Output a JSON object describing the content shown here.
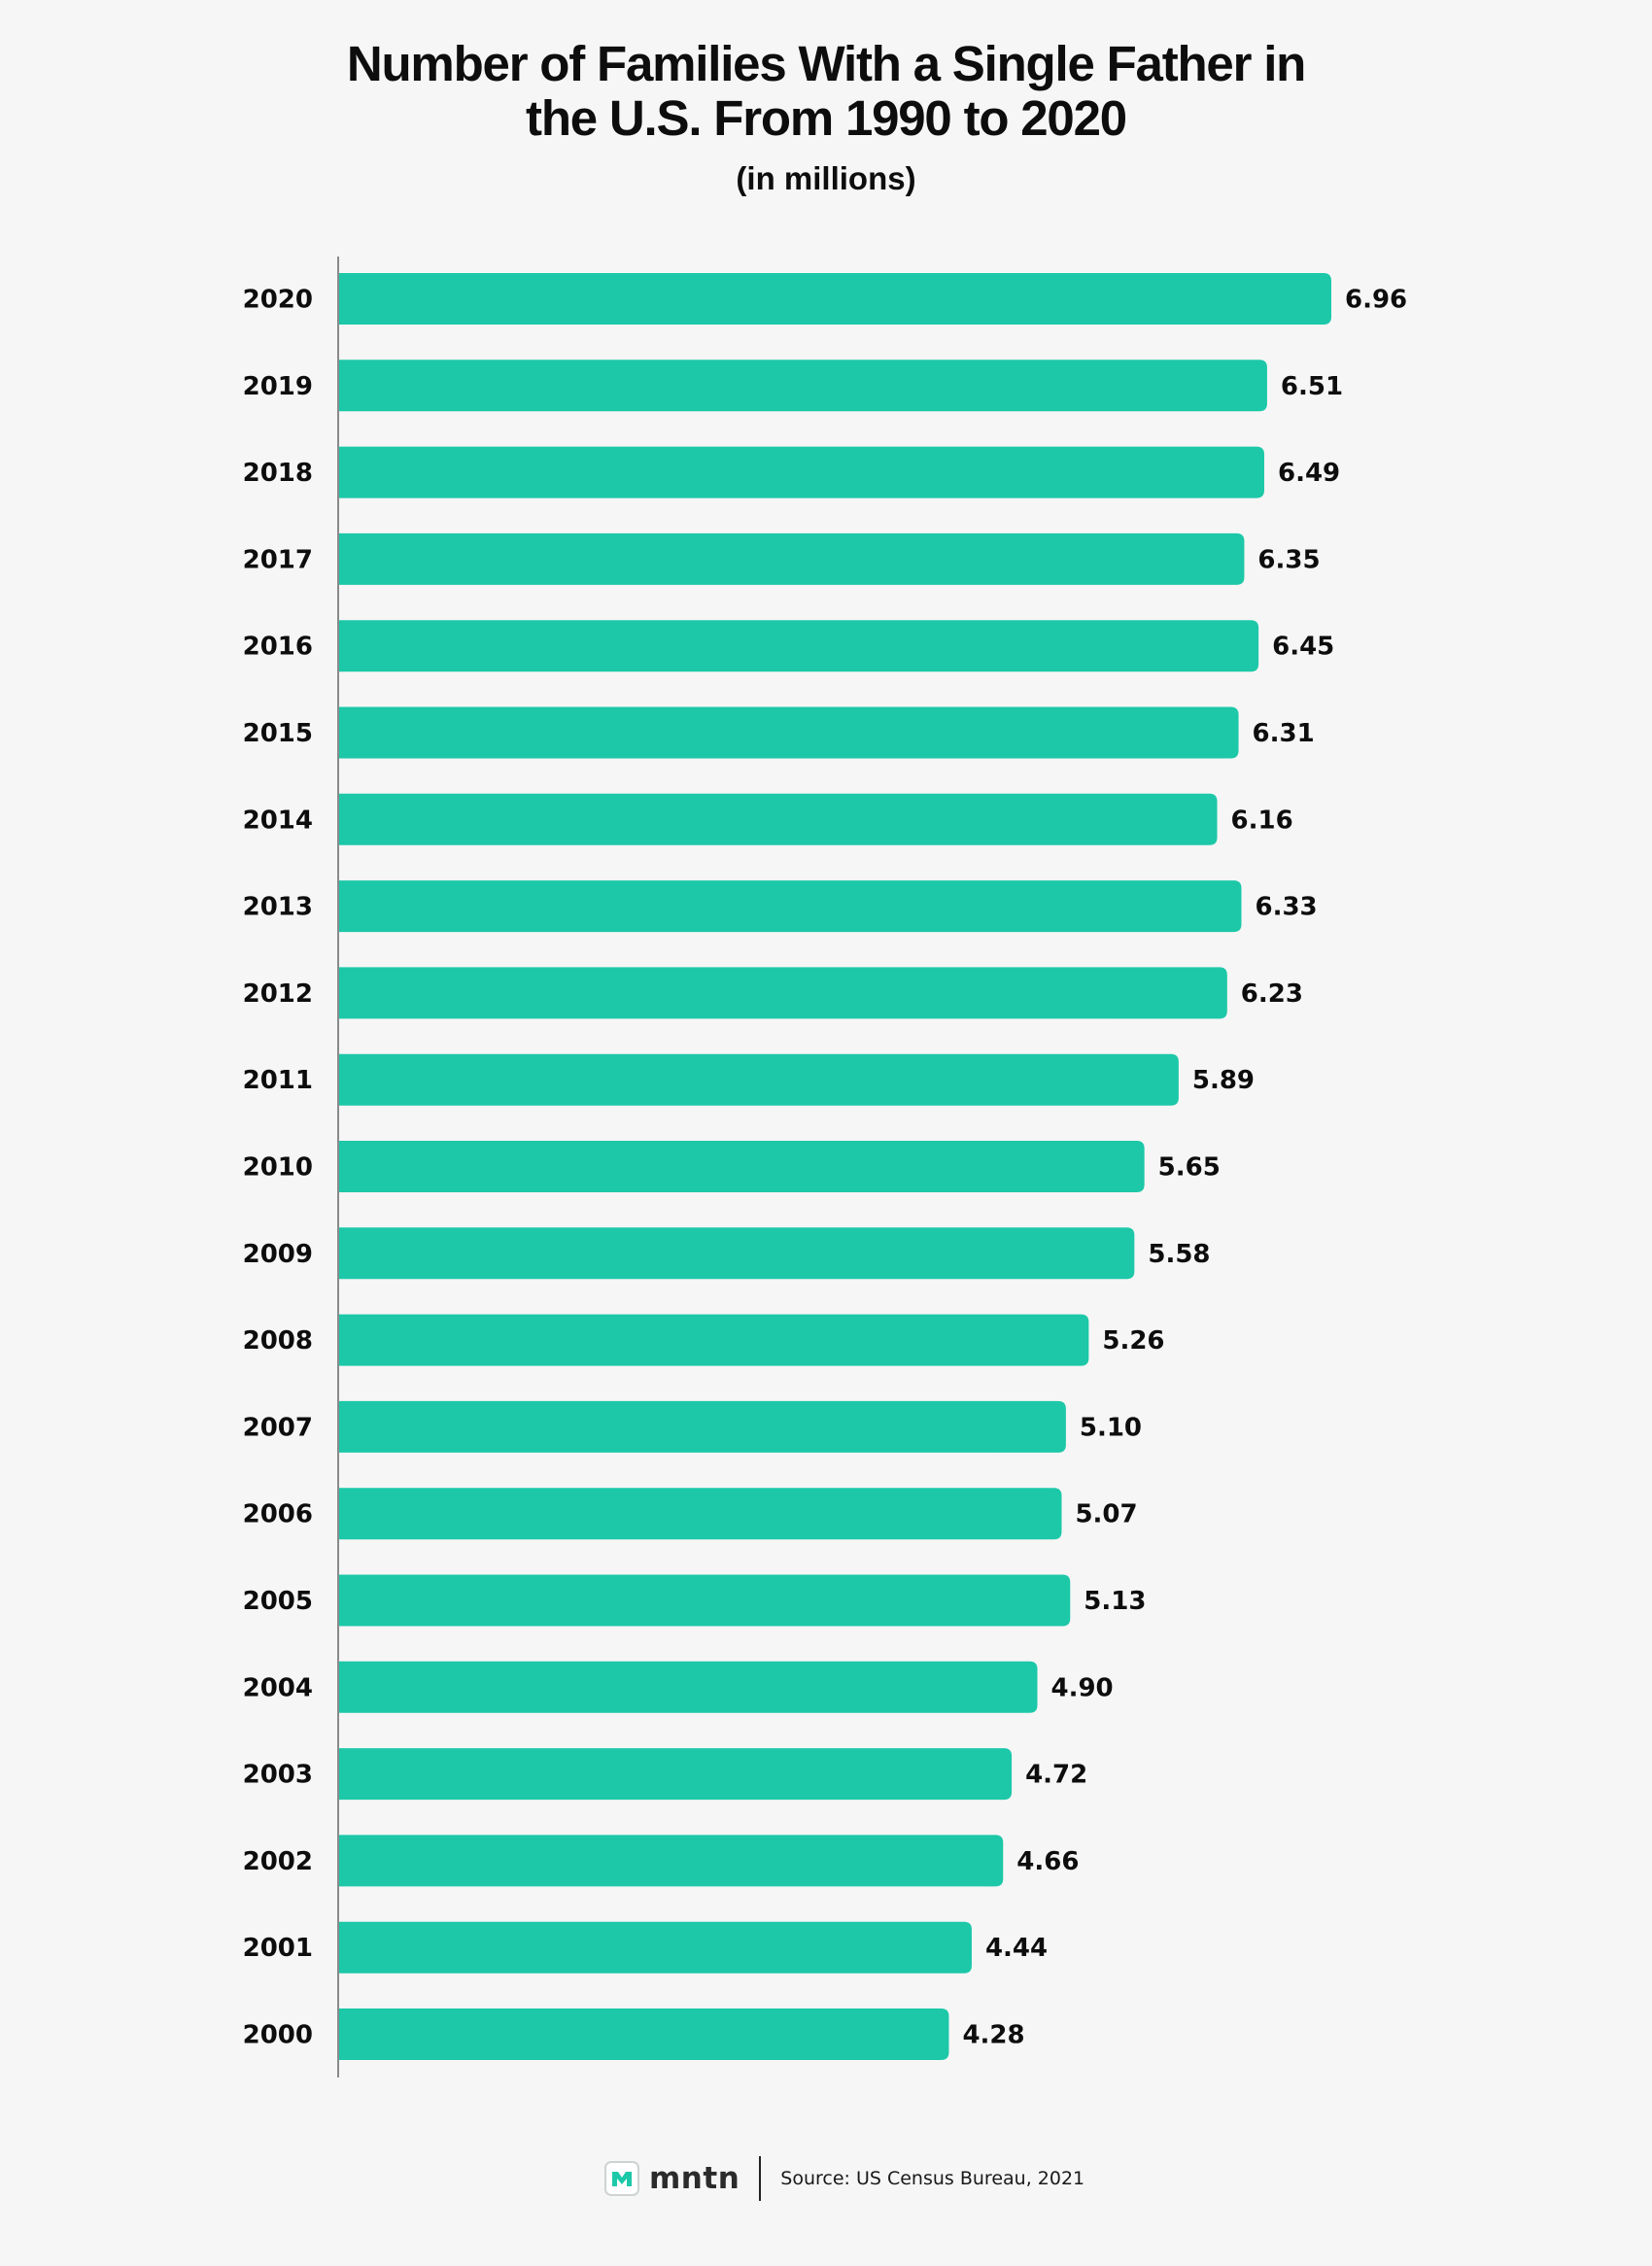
{
  "chart_data": {
    "type": "bar",
    "orientation": "horizontal",
    "title": "Number of Families With a Single Father in the U.S. From 1990 to 2020",
    "title_lines": [
      "Number of Families With a Single Father in",
      "the U.S. From 1990 to 2020"
    ],
    "subtitle": "(in millions)",
    "categories": [
      "2020",
      "2019",
      "2018",
      "2017",
      "2016",
      "2015",
      "2014",
      "2013",
      "2012",
      "2011",
      "2010",
      "2009",
      "2008",
      "2007",
      "2006",
      "2005",
      "2004",
      "2003",
      "2002",
      "2001",
      "2000"
    ],
    "values": [
      6.96,
      6.51,
      6.49,
      6.35,
      6.45,
      6.31,
      6.16,
      6.33,
      6.23,
      5.89,
      5.65,
      5.58,
      5.26,
      5.1,
      5.07,
      5.13,
      4.9,
      4.72,
      4.66,
      4.44,
      4.28
    ],
    "value_labels": [
      "6.96",
      "6.51",
      "6.49",
      "6.35",
      "6.45",
      "6.31",
      "6.16",
      "6.33",
      "6.23",
      "5.89",
      "5.65",
      "5.58",
      "5.26",
      "5.10",
      "5.07",
      "5.13",
      "4.90",
      "4.72",
      "4.66",
      "4.44",
      "4.28"
    ],
    "xlabel": "",
    "ylabel": "",
    "xlim": [
      0,
      6.96
    ],
    "grid": false,
    "bar_color": "#1cc8a8"
  },
  "footer": {
    "brand": "mntn",
    "source": "Source: US Census Bureau, 2021"
  },
  "colors": {
    "background": "#f6f6f6",
    "bar": "#1cc8a8",
    "text": "#0d0d0d",
    "axis": "#8a8a8a"
  }
}
